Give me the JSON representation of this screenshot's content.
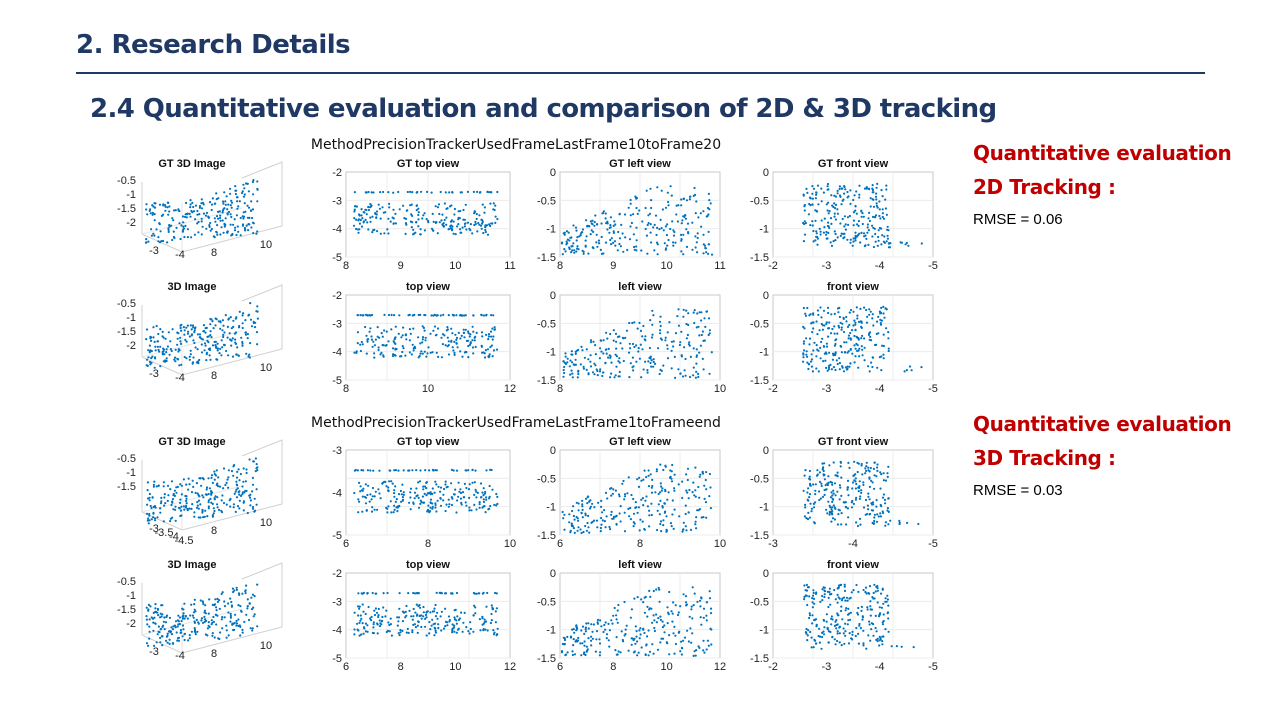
{
  "slide": {
    "title": "2. Research Details",
    "subtitle": "2.4 Quantitative evaluation and comparison of 2D & 3D tracking"
  },
  "sidebar": [
    {
      "heading": "Quantitative evaluation",
      "subheading": "2D Tracking :",
      "metric": "RMSE = 0.06"
    },
    {
      "heading": "Quantitative evaluation",
      "subheading": "3D Tracking :",
      "metric": "RMSE = 0.03"
    }
  ],
  "colors": {
    "title": "#1f3864",
    "accent": "#c00000",
    "points": "#0072bd"
  },
  "figures": [
    {
      "title": "MethodPrecisionTrackerUsedFrameLastFrame10toFrame20",
      "rows": [
        [
          {
            "type": "3d",
            "title": "GT 3D Image",
            "zticks": [
              "-0.5",
              "-1",
              "-1.5",
              "-2"
            ],
            "xticks": [
              "-3",
              "-4"
            ],
            "yticks": [
              "8",
              "10"
            ]
          },
          {
            "type": "top",
            "title": "GT top view",
            "xticks": [
              "8",
              "9",
              "10",
              "11"
            ],
            "yticks": [
              "-2",
              "-3",
              "-4",
              "-5"
            ]
          },
          {
            "type": "left",
            "title": "GT left view",
            "xticks": [
              "8",
              "9",
              "10",
              "11"
            ],
            "yticks": [
              "0",
              "-0.5",
              "-1",
              "-1.5"
            ]
          },
          {
            "type": "front",
            "title": "GT front view",
            "xticks": [
              "-2",
              "-3",
              "-4",
              "-5"
            ],
            "yticks": [
              "0",
              "-0.5",
              "-1",
              "-1.5"
            ]
          }
        ],
        [
          {
            "type": "3d",
            "title": "3D Image",
            "zticks": [
              "-0.5",
              "-1",
              "-1.5",
              "-2"
            ],
            "xticks": [
              "-3",
              "-4"
            ],
            "yticks": [
              "8",
              "10"
            ]
          },
          {
            "type": "top",
            "title": "top view",
            "xticks": [
              "8",
              "10",
              "12"
            ],
            "yticks": [
              "-2",
              "-3",
              "-4",
              "-5"
            ]
          },
          {
            "type": "left",
            "title": "left view",
            "xticks": [
              "8",
              "10"
            ],
            "yticks": [
              "0",
              "-0.5",
              "-1",
              "-1.5"
            ]
          },
          {
            "type": "front",
            "title": "front view",
            "xticks": [
              "-2",
              "-3",
              "-4",
              "-5"
            ],
            "yticks": [
              "0",
              "-0.5",
              "-1",
              "-1.5"
            ]
          }
        ]
      ]
    },
    {
      "title": "MethodPrecisionTrackerUsedFrameLastFrame1toFrameend",
      "rows": [
        [
          {
            "type": "3d",
            "title": "GT 3D Image",
            "zticks": [
              "-0.5",
              "-1",
              "-1.5"
            ],
            "xticks": [
              "-3",
              "-3.5",
              "-4",
              "-4.5"
            ],
            "yticks": [
              "8",
              "10"
            ]
          },
          {
            "type": "top",
            "title": "GT top view",
            "xticks": [
              "6",
              "8",
              "10"
            ],
            "yticks": [
              "-3",
              "-4",
              "-5"
            ]
          },
          {
            "type": "left",
            "title": "GT left view",
            "xticks": [
              "6",
              "8",
              "10"
            ],
            "yticks": [
              "0",
              "-0.5",
              "-1",
              "-1.5"
            ]
          },
          {
            "type": "front",
            "title": "GT front view",
            "xticks": [
              "-3",
              "-4",
              "-5"
            ],
            "yticks": [
              "0",
              "-0.5",
              "-1",
              "-1.5"
            ]
          }
        ],
        [
          {
            "type": "3d",
            "title": "3D Image",
            "zticks": [
              "-0.5",
              "-1",
              "-1.5",
              "-2"
            ],
            "xticks": [
              "-3",
              "-4"
            ],
            "yticks": [
              "8",
              "10"
            ]
          },
          {
            "type": "top",
            "title": "top view",
            "xticks": [
              "6",
              "8",
              "10",
              "12"
            ],
            "yticks": [
              "-2",
              "-3",
              "-4",
              "-5"
            ]
          },
          {
            "type": "left",
            "title": "left view",
            "xticks": [
              "6",
              "8",
              "10",
              "12"
            ],
            "yticks": [
              "0",
              "-0.5",
              "-1",
              "-1.5"
            ]
          },
          {
            "type": "front",
            "title": "front view",
            "xticks": [
              "-2",
              "-3",
              "-4",
              "-5"
            ],
            "yticks": [
              "0",
              "-0.5",
              "-1",
              "-1.5"
            ]
          }
        ]
      ]
    }
  ]
}
